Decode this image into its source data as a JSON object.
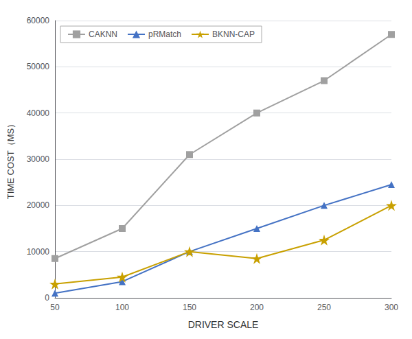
{
  "chart_data": {
    "type": "line",
    "xlabel": "DRIVER SCALE",
    "ylabel": "TIME COST（MS）",
    "x": [
      50,
      100,
      150,
      200,
      250,
      300
    ],
    "series": [
      {
        "name": "CAKNN",
        "color": "#a0a0a0",
        "marker": "square",
        "values": [
          8500,
          15000,
          31000,
          40000,
          47000,
          57000
        ]
      },
      {
        "name": "pRMatch",
        "color": "#4472c4",
        "marker": "triangle",
        "values": [
          1000,
          3500,
          10000,
          15000,
          20000,
          24500
        ]
      },
      {
        "name": "BKNN-CAP",
        "color": "#c8a000",
        "marker": "star",
        "values": [
          3000,
          4500,
          10000,
          8500,
          12500,
          20000
        ]
      }
    ],
    "xlim": [
      50,
      300
    ],
    "xticks": [
      50,
      100,
      150,
      200,
      250,
      300
    ],
    "ylim": [
      0,
      60000
    ],
    "yticks": [
      0,
      10000,
      20000,
      30000,
      40000,
      50000,
      60000
    ],
    "grid": true,
    "legend": "upper left"
  }
}
